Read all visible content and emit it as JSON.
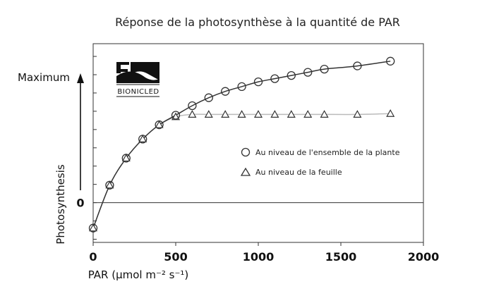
{
  "chart_data": {
    "type": "scatter",
    "title": "Réponse de la photosynthèse à la quantité de PAR",
    "xlabel": "PAR (μmol m⁻² s⁻¹)",
    "ylabel": "Photosynthesis",
    "y_max_label": "Maximum",
    "y_zero_label": "0",
    "xlim": [
      0,
      2000
    ],
    "ylim": [
      -0.25,
      1
    ],
    "x_ticks": [
      0,
      500,
      1000,
      1500,
      2000
    ],
    "y_ticks_relative": [
      -0.23,
      0,
      0.23,
      0.46,
      0.69,
      0.92
    ],
    "grid": false,
    "legend_position": "middle-right",
    "logo_text": "BIONICLED",
    "series": [
      {
        "name": "Au niveau de l'ensemble de la plante",
        "marker": "circle",
        "color": "#333333",
        "x": [
          0,
          100,
          200,
          300,
          400,
          500,
          600,
          700,
          800,
          900,
          1000,
          1100,
          1200,
          1300,
          1400,
          1600,
          1800
        ],
        "y": [
          -0.16,
          0.11,
          0.28,
          0.4,
          0.49,
          0.55,
          0.61,
          0.66,
          0.7,
          0.73,
          0.76,
          0.78,
          0.8,
          0.82,
          0.84,
          0.86,
          0.89
        ]
      },
      {
        "name": "Au niveau de la feuille",
        "marker": "triangle",
        "color": "#333333",
        "x": [
          0,
          100,
          200,
          300,
          400,
          500,
          600,
          700,
          800,
          900,
          1000,
          1100,
          1200,
          1300,
          1400,
          1600,
          1800
        ],
        "y": [
          -0.16,
          0.11,
          0.28,
          0.4,
          0.49,
          0.54,
          0.555,
          0.555,
          0.555,
          0.555,
          0.555,
          0.555,
          0.555,
          0.555,
          0.555,
          0.555,
          0.56
        ]
      }
    ]
  }
}
